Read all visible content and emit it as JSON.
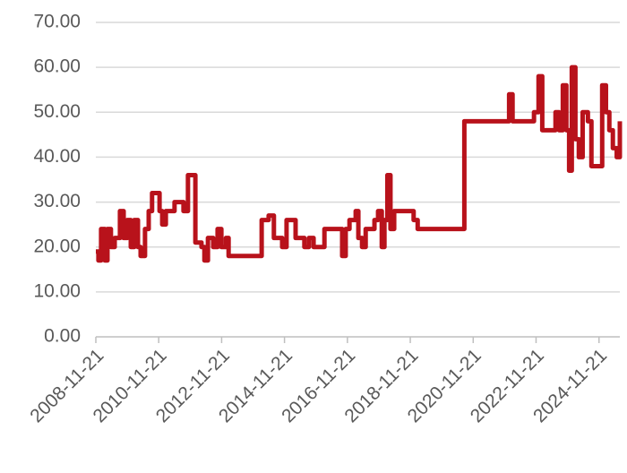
{
  "chart_data": {
    "type": "line",
    "step": "post",
    "grid": true,
    "xlim": [
      "2008-11-21",
      "2025-07-21"
    ],
    "xticks": [
      "2008-11-21",
      "2010-11-21",
      "2012-11-21",
      "2014-11-21",
      "2016-11-21",
      "2018-11-21",
      "2020-11-21",
      "2022-11-21",
      "2024-11-21"
    ],
    "ylim": [
      0,
      70
    ],
    "yticks": [
      {
        "value": 0,
        "label": "0.00"
      },
      {
        "value": 10,
        "label": "10.00"
      },
      {
        "value": 20,
        "label": "20.00"
      },
      {
        "value": 30,
        "label": "30.00"
      },
      {
        "value": 40,
        "label": "40.00"
      },
      {
        "value": 50,
        "label": "50.00"
      },
      {
        "value": 60,
        "label": "60.00"
      },
      {
        "value": 70,
        "label": "70.00"
      }
    ],
    "x": [
      "2008-11-21",
      "2008-12-21",
      "2009-01-21",
      "2009-03-05",
      "2009-04-05",
      "2009-05-15",
      "2009-06-28",
      "2009-08-28",
      "2009-10-10",
      "2009-11-21",
      "2010-01-01",
      "2010-02-10",
      "2010-03-25",
      "2010-04-25",
      "2010-06-15",
      "2010-07-28",
      "2010-09-05",
      "2010-12-01",
      "2011-01-01",
      "2011-02-12",
      "2011-05-24",
      "2011-09-05",
      "2011-10-27",
      "2012-01-21",
      "2012-04-01",
      "2012-05-05",
      "2012-06-15",
      "2012-08-15",
      "2012-10-05",
      "2012-11-18",
      "2013-01-10",
      "2013-02-10",
      "2013-08-05",
      "2014-03-01",
      "2014-05-21",
      "2014-07-21",
      "2014-10-25",
      "2014-12-15",
      "2015-03-30",
      "2015-07-10",
      "2015-09-01",
      "2015-10-25",
      "2016-02-28",
      "2016-09-21",
      "2016-11-01",
      "2016-12-15",
      "2017-02-25",
      "2017-03-28",
      "2017-05-10",
      "2017-06-21",
      "2017-10-01",
      "2017-11-12",
      "2017-12-25",
      "2018-01-25",
      "2018-02-28",
      "2018-04-05",
      "2018-05-18",
      "2018-12-30",
      "2019-02-15",
      "2020-08-10",
      "2021-12-10",
      "2022-01-12",
      "2022-02-21",
      "2022-10-28",
      "2022-12-20",
      "2023-02-01",
      "2023-07-05",
      "2023-08-15",
      "2023-09-28",
      "2023-11-08",
      "2023-12-10",
      "2024-01-10",
      "2024-02-21",
      "2024-04-01",
      "2024-05-15",
      "2024-07-15",
      "2024-08-25",
      "2024-12-28",
      "2025-02-10",
      "2025-03-21",
      "2025-05-01",
      "2025-06-15",
      "2025-07-21"
    ],
    "series": [
      {
        "color": "#b8121b",
        "values": [
          19,
          17,
          24,
          17,
          24,
          20,
          22,
          28,
          22,
          26,
          20,
          26,
          20,
          18,
          24,
          28,
          32,
          28,
          25,
          28,
          30,
          28,
          36,
          21,
          20,
          17,
          22,
          20,
          24,
          20,
          22,
          18,
          18,
          26,
          27,
          22,
          20,
          26,
          22,
          20,
          22,
          20,
          24,
          18,
          24,
          26,
          28,
          22,
          20,
          24,
          26,
          28,
          20,
          26,
          36,
          24,
          28,
          26,
          24,
          48,
          48,
          54,
          48,
          50,
          58,
          46,
          50,
          46,
          56,
          46,
          37,
          60,
          44,
          40,
          50,
          48,
          38,
          56,
          50,
          46,
          42,
          40,
          48
        ]
      }
    ]
  }
}
